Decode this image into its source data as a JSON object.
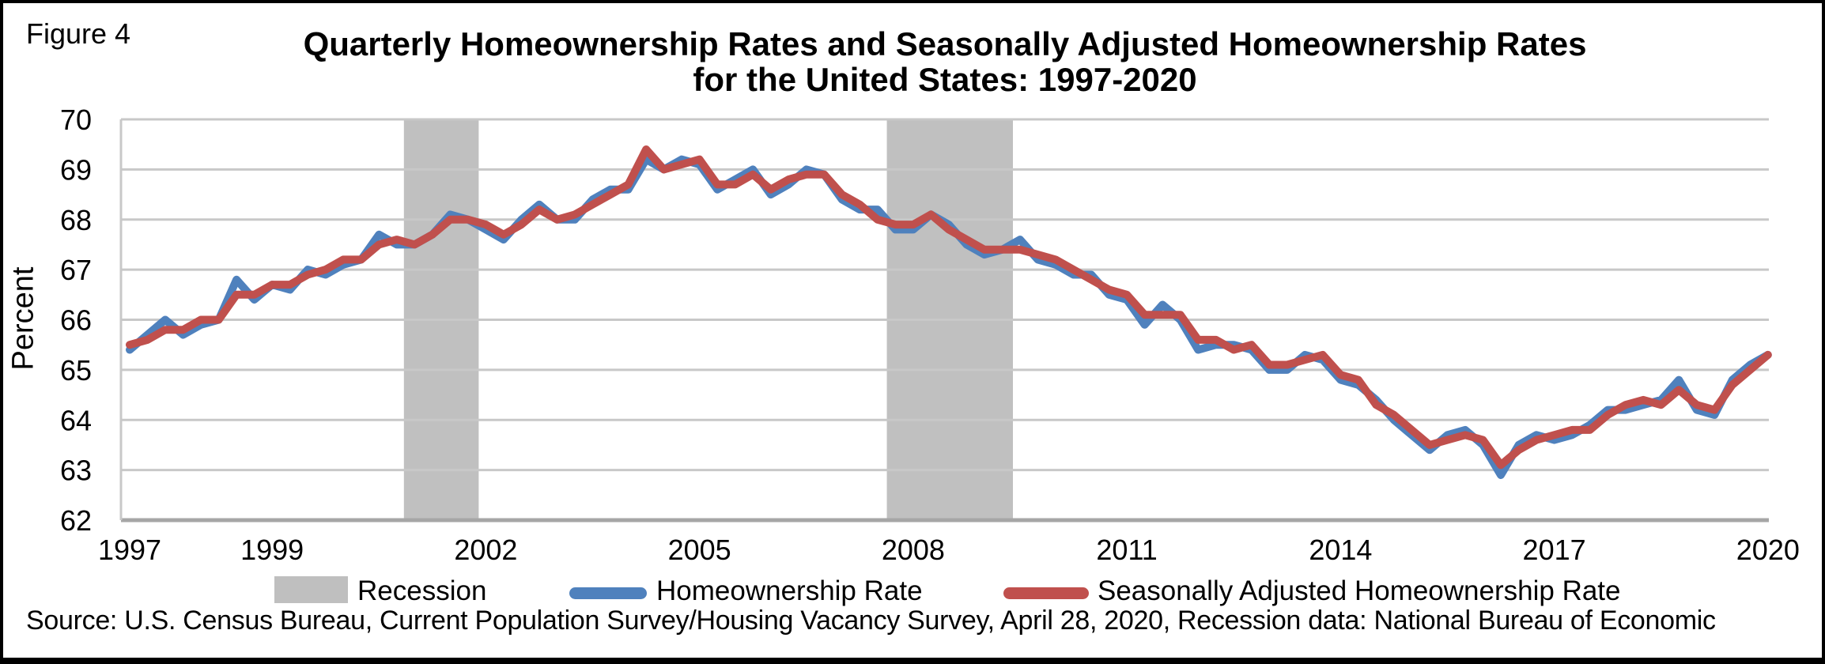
{
  "figure_label": "Figure 4",
  "title_line1": "Quarterly Homeownership Rates and Seasonally Adjusted Homeownership Rates",
  "title_line2": "for the United States: 1997-2020",
  "y_axis_title": "Percent",
  "source_text": "Source: U.S. Census Bureau, Current Population Survey/Housing Vacancy Survey, April 28, 2020, Recession data: National Bureau of Economic",
  "legend": {
    "recession_label": "Recession",
    "series1_label": "Homeownership Rate",
    "series2_label": "Seasonally Adjusted Homeownership Rate"
  },
  "colors": {
    "series1_blue": "#4F81BD",
    "series2_red": "#C0504D",
    "recession_band": "#C0C0C0",
    "legend_gray": "#BFBFBF",
    "gridline": "#C8C8C8",
    "axis_line": "#A6A6A6",
    "text": "#000000"
  },
  "chart_data": {
    "type": "line",
    "title": "Quarterly Homeownership Rates and Seasonally Adjusted Homeownership Rates for the United States: 1997-2020",
    "xlabel": "",
    "ylabel": "Percent",
    "x_unit": "quarter",
    "x_start_year": 1997,
    "x_start_quarter": 1,
    "x_end_year": 2020,
    "x_end_quarter": 1,
    "frequency": "quarterly",
    "ylim": [
      62,
      70
    ],
    "y_tick_step": 1,
    "y_tick_labels": [
      70,
      69,
      68,
      67,
      66,
      65,
      64,
      63,
      62
    ],
    "x_tick_years": [
      1997,
      1999,
      2002,
      2005,
      2008,
      2011,
      2014,
      2017,
      2020
    ],
    "grid": true,
    "legend_position": "bottom",
    "recession_bands_years": [
      [
        2000.85,
        2001.9
      ],
      [
        2007.63,
        2009.4
      ]
    ],
    "series": [
      {
        "name": "Homeownership Rate",
        "color": "#4F81BD",
        "values": [
          65.4,
          65.7,
          66.0,
          65.7,
          65.9,
          66.0,
          66.8,
          66.4,
          66.7,
          66.6,
          67.0,
          66.9,
          67.1,
          67.2,
          67.7,
          67.5,
          67.5,
          67.7,
          68.1,
          68.0,
          67.8,
          67.6,
          68.0,
          68.3,
          68.0,
          68.0,
          68.4,
          68.6,
          68.6,
          69.2,
          69.0,
          69.2,
          69.1,
          68.6,
          68.8,
          69.0,
          68.5,
          68.7,
          69.0,
          68.9,
          68.4,
          68.2,
          68.2,
          67.8,
          67.8,
          68.1,
          67.9,
          67.5,
          67.3,
          67.4,
          67.6,
          67.2,
          67.1,
          66.9,
          66.9,
          66.5,
          66.4,
          65.9,
          66.3,
          66.0,
          65.4,
          65.5,
          65.5,
          65.4,
          65.0,
          65.0,
          65.3,
          65.2,
          64.8,
          64.7,
          64.4,
          64.0,
          63.7,
          63.4,
          63.7,
          63.8,
          63.5,
          62.9,
          63.5,
          63.7,
          63.6,
          63.7,
          63.9,
          64.2,
          64.2,
          64.3,
          64.4,
          64.8,
          64.2,
          64.1,
          64.8,
          65.1,
          65.3
        ]
      },
      {
        "name": "Seasonally Adjusted Homeownership Rate",
        "color": "#C0504D",
        "values": [
          65.5,
          65.6,
          65.8,
          65.8,
          66.0,
          66.0,
          66.5,
          66.5,
          66.7,
          66.7,
          66.9,
          67.0,
          67.2,
          67.2,
          67.5,
          67.6,
          67.5,
          67.7,
          68.0,
          68.0,
          67.9,
          67.7,
          67.9,
          68.2,
          68.0,
          68.1,
          68.3,
          68.5,
          68.7,
          69.4,
          69.0,
          69.1,
          69.2,
          68.7,
          68.7,
          68.9,
          68.6,
          68.8,
          68.9,
          68.9,
          68.5,
          68.3,
          68.0,
          67.9,
          67.9,
          68.1,
          67.8,
          67.6,
          67.4,
          67.4,
          67.4,
          67.3,
          67.2,
          67.0,
          66.8,
          66.6,
          66.5,
          66.1,
          66.1,
          66.1,
          65.6,
          65.6,
          65.4,
          65.5,
          65.1,
          65.1,
          65.2,
          65.3,
          64.9,
          64.8,
          64.3,
          64.1,
          63.8,
          63.5,
          63.6,
          63.7,
          63.6,
          63.1,
          63.4,
          63.6,
          63.7,
          63.8,
          63.8,
          64.1,
          64.3,
          64.4,
          64.3,
          64.6,
          64.3,
          64.2,
          64.7,
          65.0,
          65.3
        ]
      }
    ]
  }
}
